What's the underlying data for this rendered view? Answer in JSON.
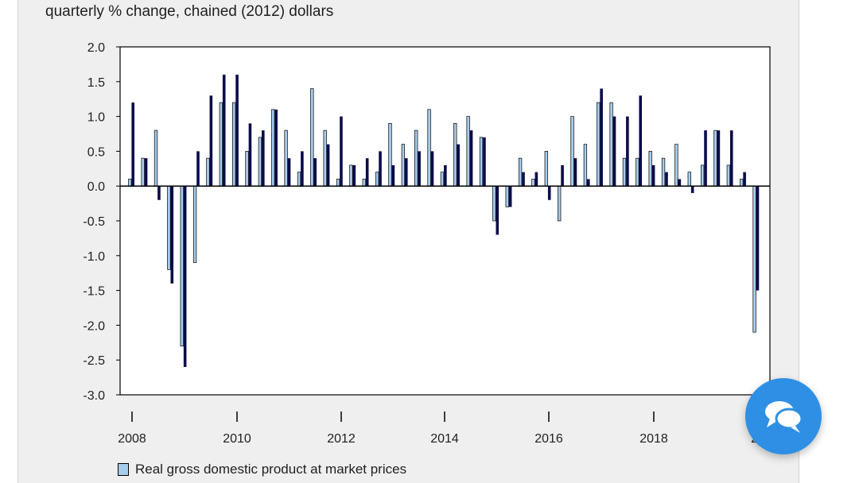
{
  "subtitle": "quarterly % change, chained (2012) dollars",
  "legend": {
    "label": "Real gross domestic product at market prices"
  },
  "chat_button": {
    "icon": "chat-bubbles-icon"
  },
  "colors": {
    "series_light": "#a7cdec",
    "series_dark": "#0b0b4a",
    "chat_button": "#2e8fe4"
  },
  "chart_data": {
    "type": "bar",
    "ylim": [
      -3.0,
      2.0
    ],
    "ytick_labels": [
      "2.0",
      "1.5",
      "1.0",
      "0.5",
      "0.0",
      "-0.5",
      "-1.0",
      "-1.5",
      "-2.0",
      "-2.5",
      "-3.0"
    ],
    "xtick_labels": [
      "2008",
      "2010",
      "2012",
      "2014",
      "2016",
      "2018",
      "20"
    ],
    "legend_position": "bottom",
    "grid": false,
    "categories": [
      "2008Q1",
      "2008Q2",
      "2008Q3",
      "2008Q4",
      "2009Q1",
      "2009Q2",
      "2009Q3",
      "2009Q4",
      "2010Q1",
      "2010Q2",
      "2010Q3",
      "2010Q4",
      "2011Q1",
      "2011Q2",
      "2011Q3",
      "2011Q4",
      "2012Q1",
      "2012Q2",
      "2012Q3",
      "2012Q4",
      "2013Q1",
      "2013Q2",
      "2013Q3",
      "2013Q4",
      "2014Q1",
      "2014Q2",
      "2014Q3",
      "2014Q4",
      "2015Q1",
      "2015Q2",
      "2015Q3",
      "2015Q4",
      "2016Q1",
      "2016Q2",
      "2016Q3",
      "2016Q4",
      "2017Q1",
      "2017Q2",
      "2017Q3",
      "2017Q4",
      "2018Q1",
      "2018Q2",
      "2018Q3",
      "2018Q4",
      "2019Q1",
      "2019Q2",
      "2019Q3",
      "2019Q4",
      "2020Q1"
    ],
    "series": [
      {
        "name": "Real gross domestic product at market prices",
        "values": [
          0.1,
          0.4,
          0.8,
          -1.2,
          -2.3,
          -1.1,
          0.4,
          1.2,
          1.2,
          0.5,
          0.7,
          1.1,
          0.8,
          0.2,
          1.4,
          0.8,
          0.1,
          0.3,
          0.1,
          0.2,
          0.9,
          0.6,
          0.8,
          1.1,
          0.2,
          0.9,
          1.0,
          0.7,
          -0.5,
          -0.3,
          0.4,
          0.1,
          0.5,
          -0.5,
          1.0,
          0.6,
          1.2,
          1.2,
          0.4,
          0.4,
          0.5,
          0.4,
          0.6,
          0.2,
          0.3,
          0.8,
          0.3,
          0.1,
          -2.1
        ]
      },
      {
        "values": [
          1.2,
          0.4,
          -0.2,
          -1.4,
          -2.6,
          0.5,
          1.3,
          1.6,
          1.6,
          0.9,
          0.8,
          1.1,
          0.4,
          0.5,
          0.4,
          0.6,
          1.0,
          0.3,
          0.4,
          0.5,
          0.3,
          0.4,
          0.5,
          0.5,
          0.3,
          0.6,
          0.8,
          0.7,
          -0.7,
          -0.3,
          0.2,
          0.2,
          -0.2,
          0.3,
          0.4,
          0.1,
          1.4,
          1.0,
          1.0,
          1.3,
          0.3,
          0.2,
          0.1,
          -0.1,
          0.8,
          0.8,
          0.8,
          0.2,
          -1.5
        ]
      }
    ]
  }
}
